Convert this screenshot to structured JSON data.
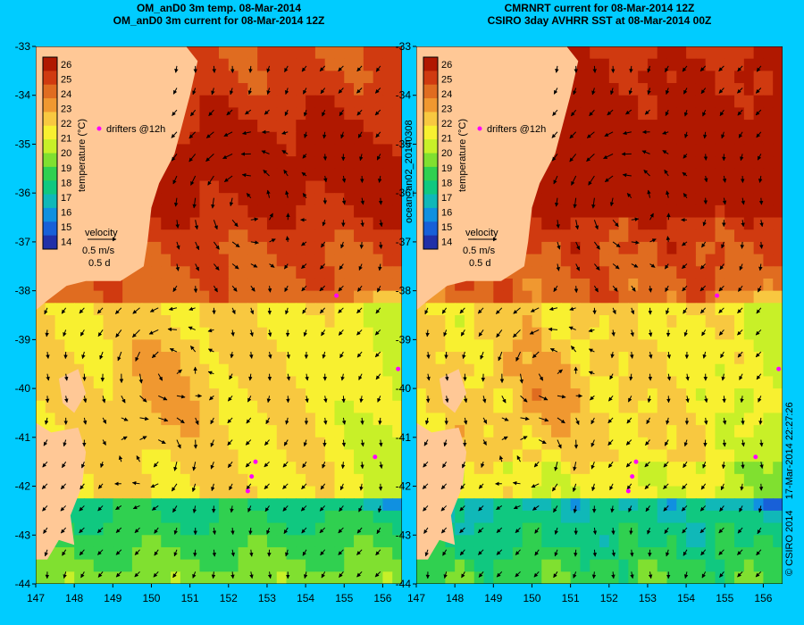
{
  "panels": [
    {
      "id": "left",
      "title_lines": [
        "OM_anD0 3m temp. 08-Mar-2014",
        "OM_anD0 3m current for 08-Mar-2014 12Z"
      ],
      "side_label": "",
      "field": "model"
    },
    {
      "id": "right",
      "title_lines": [
        "CMRNRT current for 08-Mar-2014 12Z",
        "CSIRO 3day AVHRR SST at 08-Mar-2014 00Z"
      ],
      "side_label": "ocean_an02_20140308",
      "field": "satellite"
    }
  ],
  "axes": {
    "lat_ticks": [
      "-33",
      "-34",
      "-35",
      "-36",
      "-37",
      "-38",
      "-39",
      "-40",
      "-41",
      "-42",
      "-43",
      "-44"
    ],
    "lon_ticks": [
      "147",
      "148",
      "149",
      "150",
      "151",
      "152",
      "153",
      "154",
      "155",
      "156"
    ],
    "lon_range": [
      147,
      156.5
    ],
    "lat_range": [
      -44,
      -33
    ]
  },
  "colorbar": {
    "title": "temperature (°C)",
    "ticks": [
      "26",
      "25",
      "24",
      "23",
      "22",
      "21",
      "20",
      "19",
      "18",
      "17",
      "16",
      "15",
      "14"
    ],
    "colors": [
      "#b01800",
      "#d03a10",
      "#e06c20",
      "#f09830",
      "#f8c840",
      "#f8f030",
      "#c8f028",
      "#80e030",
      "#30d050",
      "#10c880",
      "#10b8b8",
      "#1090e0",
      "#1860d8",
      "#2030a8"
    ]
  },
  "legend": {
    "drifters_label": "drifters @12h",
    "velocity_label": "velocity",
    "velocity_scale": "0.5 m/s",
    "velocity_time": "0.5 d"
  },
  "footer": {
    "credit": "© CSIRO 2014",
    "timestamp": "17-Mar-2014 22:27:26"
  },
  "colors": {
    "background": "#00ccff",
    "land": "#ffc896",
    "drifter": "#ff00ff",
    "arrow": "#000000"
  }
}
